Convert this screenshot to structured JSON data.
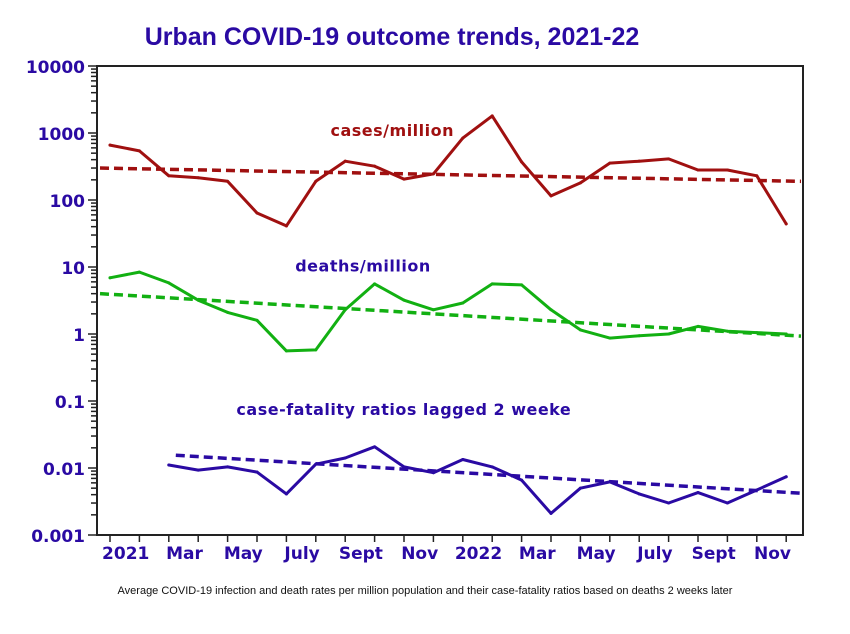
{
  "chart_data": {
    "type": "line",
    "title": "Urban COVID-19 outcome trends, 2021-22",
    "caption": "Average COVID-19 infection and death rates per million population and their case-fatality ratios based on deaths 2 weeks later",
    "xlabel": "",
    "ylabel": "",
    "yscale": "log",
    "ylim": [
      0.001,
      10000
    ],
    "yticks": [
      "10000",
      "1000",
      "100",
      "10",
      "1",
      "0.1",
      "0.01",
      "0.001"
    ],
    "ytick_values": [
      10000,
      1000,
      100,
      10,
      1,
      0.1,
      0.01,
      0.001
    ],
    "months": [
      "Jan 2021",
      "Feb 2021",
      "Mar 2021",
      "Apr 2021",
      "May 2021",
      "Jun 2021",
      "Jul 2021",
      "Aug 2021",
      "Sep 2021",
      "Oct 2021",
      "Nov 2021",
      "Dec 2021",
      "Jan 2022",
      "Feb 2022",
      "Mar 2022",
      "Apr 2022",
      "May 2022",
      "Jun 2022",
      "Jul 2022",
      "Aug 2022",
      "Sep 2022",
      "Oct 2022",
      "Nov 2022",
      "Dec 2022"
    ],
    "xtick_labels": [
      {
        "label": "2021",
        "month_index": 0.5
      },
      {
        "label": "Mar",
        "month_index": 2.5
      },
      {
        "label": "May",
        "month_index": 4.5
      },
      {
        "label": "July",
        "month_index": 6.5
      },
      {
        "label": "Sept",
        "month_index": 8.5
      },
      {
        "label": "Nov",
        "month_index": 10.5
      },
      {
        "label": "2022",
        "month_index": 12.5
      },
      {
        "label": "Mar",
        "month_index": 14.5
      },
      {
        "label": "May",
        "month_index": 16.5
      },
      {
        "label": "July",
        "month_index": 18.5
      },
      {
        "label": "Sept",
        "month_index": 20.5
      },
      {
        "label": "Nov",
        "month_index": 22.5
      }
    ],
    "grid": false,
    "legend": "none (inline annotations)",
    "series": [
      {
        "name": "cases/million",
        "color": "#a01010",
        "label_month_index": 7.5,
        "label_value": 900,
        "start_index": 0,
        "values": [
          660,
          540,
          230,
          215,
          190,
          64,
          41,
          190,
          380,
          320,
          205,
          245,
          840,
          1800,
          370,
          115,
          180,
          355,
          380,
          410,
          280,
          280,
          230,
          44
        ],
        "trend": {
          "start": 300,
          "end": 190
        }
      },
      {
        "name": "deaths/million",
        "color": "#12b012",
        "label_month_index": 6.3,
        "label_value": 8.5,
        "start_index": 0,
        "values": [
          6.9,
          8.4,
          5.8,
          3.2,
          2.1,
          1.6,
          0.56,
          0.58,
          2.3,
          5.6,
          3.2,
          2.3,
          2.9,
          5.6,
          5.4,
          2.3,
          1.15,
          0.87,
          0.94,
          1.0,
          1.3,
          1.1,
          1.05,
          1.0
        ],
        "trend": {
          "start": 4.0,
          "end": 0.93
        }
      },
      {
        "name": "case-fatality ratios lagged 2 weeke",
        "color": "#2a0aa3",
        "label_month_index": 4.3,
        "label_value": 0.062,
        "start_index": 2,
        "values": [
          0.0111,
          0.0093,
          0.0104,
          0.0087,
          0.0041,
          0.0114,
          0.0141,
          0.0207,
          0.0104,
          0.0085,
          0.0134,
          0.0104,
          0.0066,
          0.0021,
          0.005,
          0.0062,
          0.0041,
          0.003,
          0.0043,
          0.003,
          0.0047,
          0.0074
        ],
        "trend": {
          "start": 0.0155,
          "end": 0.0042
        }
      }
    ]
  }
}
